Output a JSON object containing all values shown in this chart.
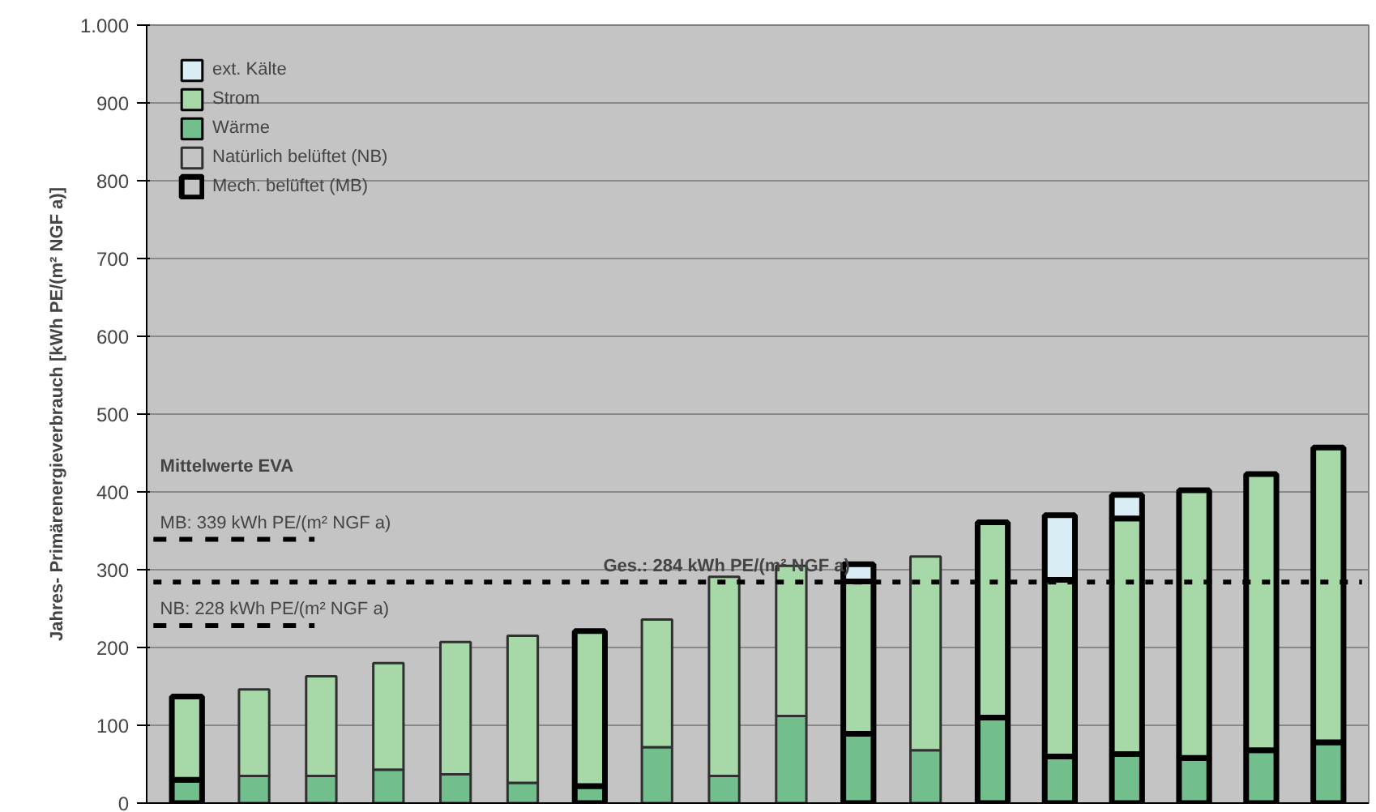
{
  "chart_data": {
    "type": "bar",
    "stacked": true,
    "categories": [
      null,
      null,
      null,
      null,
      null,
      null,
      null,
      null,
      null,
      null,
      null,
      null,
      null,
      null,
      null,
      null,
      null,
      null
    ],
    "ylabel": "Jahres- Primärenergieverbrauch [kWh PE/(m² NGF a)]",
    "ylim": [
      0,
      1000
    ],
    "yticks": [
      0,
      100,
      200,
      300,
      400,
      500,
      600,
      700,
      800,
      900,
      {
        "value": 1000,
        "label": "1.000"
      }
    ],
    "grid": "y",
    "legend": "top left",
    "series": [
      {
        "name": "ext. Kälte",
        "color": "#d8eef4",
        "values": [
          null,
          null,
          null,
          null,
          null,
          null,
          null,
          null,
          null,
          null,
          22,
          null,
          null,
          83,
          30,
          null,
          null,
          null
        ]
      },
      {
        "name": "Strom",
        "color": "#a6d8a8",
        "values": [
          107,
          111,
          128,
          137,
          170,
          189,
          199,
          164,
          256,
          193,
          196,
          249,
          251,
          227,
          303,
          344,
          355,
          379
        ]
      },
      {
        "name": "Wärme",
        "color": "#72be8c",
        "values": [
          30,
          35,
          35,
          43,
          37,
          26,
          22,
          72,
          35,
          112,
          89,
          68,
          110,
          60,
          63,
          58,
          68,
          78
        ]
      },
      {
        "name": "Natürlich belüftet (NB)",
        "color": "#303030",
        "values": [
          null,
          0,
          0,
          0,
          0,
          0,
          null,
          0,
          0,
          0,
          null,
          0,
          null,
          null,
          null,
          null,
          null,
          null
        ]
      },
      {
        "name": "Mech. belüftet (MB)",
        "color": "#000000",
        "values": [
          0,
          null,
          null,
          null,
          null,
          null,
          0,
          null,
          null,
          null,
          0,
          null,
          0,
          0,
          0,
          0,
          0,
          0
        ]
      }
    ],
    "ref_lines": [
      {
        "axis": "y",
        "value": 339,
        "label": "MB: 339 kWh PE/(m² NGF a)",
        "line_style": "dashed",
        "color": "#000000"
      },
      {
        "axis": "y",
        "value": 284,
        "label": "Ges.: 284 kWh PE/(m² NGF a)",
        "line_style": "dotted",
        "color": "#000000"
      },
      {
        "axis": "y",
        "value": 228,
        "label": "NB: 228 kWh PE/(m² NGF a)",
        "line_style": "dashed",
        "color": "#000000"
      }
    ],
    "annotations": [
      "Mittelwerte EVA"
    ]
  }
}
